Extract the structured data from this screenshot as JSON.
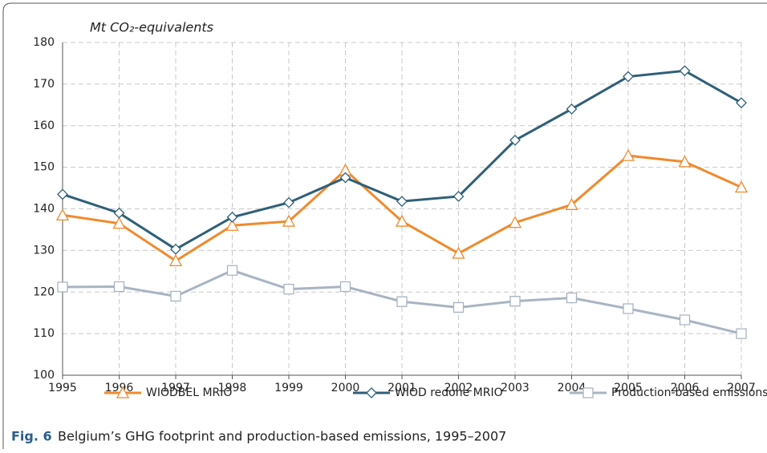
{
  "chart_data": {
    "type": "line",
    "y_label": "Mt CO₂-equivalents",
    "categories": [
      "1995",
      "1996",
      "1997",
      "1998",
      "1999",
      "2000",
      "2001",
      "2002",
      "2003",
      "2004",
      "2005",
      "2006",
      "2007"
    ],
    "series": [
      {
        "name": "WIODBEL MRIO",
        "color": "#f08a2c",
        "marker": "triangle",
        "values": [
          138.5,
          136.5,
          127.5,
          136,
          137,
          149.3,
          137,
          129.3,
          136.7,
          141,
          152.8,
          151.3,
          145.2
        ]
      },
      {
        "name": "WIOD redone MRIO",
        "color": "#2e5f78",
        "marker": "diamond",
        "values": [
          143.5,
          139,
          130.3,
          138,
          141.5,
          147.5,
          141.8,
          143,
          156.5,
          164,
          171.8,
          173.2,
          165.5
        ]
      },
      {
        "name": "Production-based emissions",
        "color": "#a9b4c2",
        "marker": "square",
        "values": [
          121.2,
          121.3,
          119,
          125.2,
          120.7,
          121.3,
          117.7,
          116.3,
          117.8,
          118.6,
          116,
          113.3,
          110
        ]
      }
    ],
    "ylim": [
      100,
      180
    ],
    "yticks": [
      100,
      110,
      120,
      130,
      140,
      150,
      160,
      170,
      180
    ],
    "grid": true,
    "legend": "bottom"
  },
  "caption": {
    "label": "Fig. 6",
    "text": "Belgium’s GHG footprint and production-based emissions, 1995–2007"
  }
}
